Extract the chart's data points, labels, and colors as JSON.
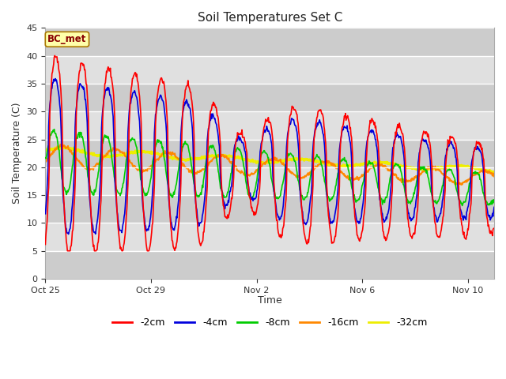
{
  "title": "Soil Temperatures Set C",
  "xlabel": "Time",
  "ylabel": "Soil Temperature (C)",
  "ylim": [
    0,
    45
  ],
  "yticks": [
    0,
    5,
    10,
    15,
    20,
    25,
    30,
    35,
    40,
    45
  ],
  "background_color": "#ffffff",
  "plot_bg_outer": "#d8d8d8",
  "plot_bg_light": "#e8e8e8",
  "plot_bg_dark": "#d0d0d0",
  "annotation_label": "BC_met",
  "annotation_bg": "#ffffaa",
  "annotation_border": "#aa7700",
  "annotation_text_color": "#880000",
  "colors": {
    "-2cm": "#ff0000",
    "-4cm": "#0000dd",
    "-8cm": "#00cc00",
    "-16cm": "#ff8800",
    "-32cm": "#eeee00"
  },
  "legend_entries": [
    "-2cm",
    "-4cm",
    "-8cm",
    "-16cm",
    "-32cm"
  ],
  "x_tick_labels": [
    "Oct 25",
    "Oct 29",
    "Nov 2",
    "Nov 6",
    "Nov 10"
  ],
  "x_tick_positions": [
    0,
    4,
    8,
    12,
    16
  ],
  "total_days": 17,
  "points_per_day": 48
}
